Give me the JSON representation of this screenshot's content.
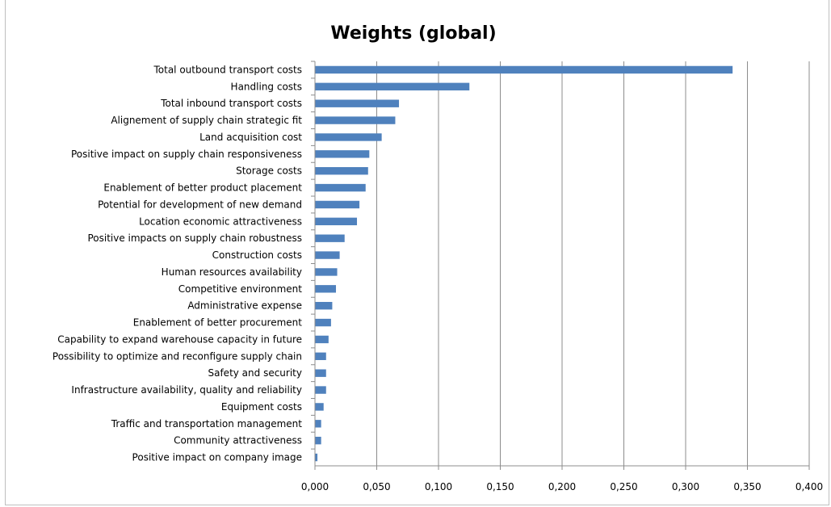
{
  "chart_data": {
    "type": "bar",
    "orientation": "horizontal",
    "title": "Weights (global)",
    "xlabel": "",
    "ylabel": "",
    "xlim": [
      0,
      0.4
    ],
    "grid": true,
    "legend": "none",
    "bar_color": "#4f81bd",
    "x_ticks": [
      "0,000",
      "0,050",
      "0,100",
      "0,150",
      "0,200",
      "0,250",
      "0,300",
      "0,350",
      "0,400"
    ],
    "categories": [
      "Total outbound transport costs",
      "Handling costs",
      "Total inbound transport costs",
      "Alignement of supply chain strategic fit",
      "Land acquisition cost",
      "Positive impact on supply chain responsiveness",
      "Storage costs",
      "Enablement of better product placement",
      "Potential for development of new demand",
      "Location economic attractiveness",
      "Positive impacts on supply chain robustness",
      "Construction costs",
      "Human resources availability",
      "Competitive environment",
      "Administrative expense",
      "Enablement of better procurement",
      "Capability to expand warehouse capacity in future",
      "Possibility to optimize and reconfigure supply chain",
      "Safety and security",
      "Infrastructure availability,  quality and reliability",
      "Equipment costs",
      "Traffic and transportation management",
      "Community attractiveness",
      "Positive impact on company image"
    ],
    "values": [
      0.338,
      0.125,
      0.068,
      0.065,
      0.054,
      0.044,
      0.043,
      0.041,
      0.036,
      0.034,
      0.024,
      0.02,
      0.018,
      0.017,
      0.014,
      0.013,
      0.011,
      0.009,
      0.009,
      0.009,
      0.007,
      0.005,
      0.005,
      0.002
    ]
  }
}
